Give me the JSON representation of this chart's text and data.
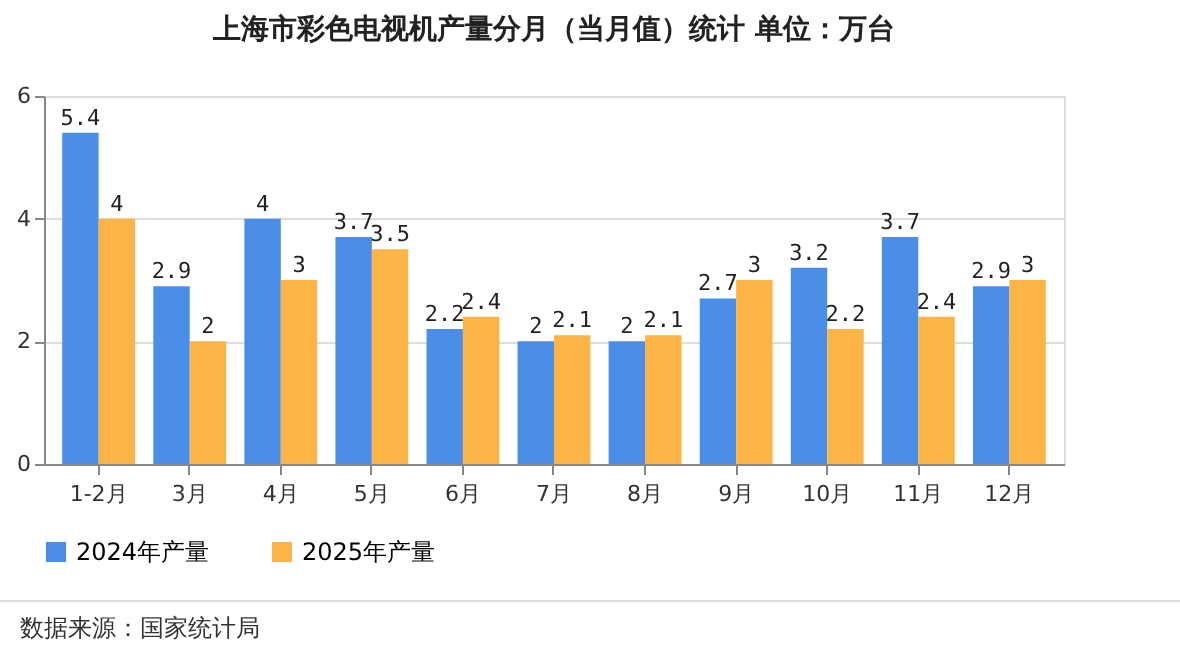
{
  "chart_data": {
    "type": "bar",
    "title": "上海市彩色电视机产量分月（当月值）统计  单位：万台",
    "categories": [
      "1-2月",
      "3月",
      "4月",
      "5月",
      "6月",
      "7月",
      "8月",
      "9月",
      "10月",
      "11月",
      "12月"
    ],
    "series": [
      {
        "name": "2024年产量",
        "color": "#4a8ee8",
        "values": [
          5.4,
          2.9,
          4,
          3.7,
          2.2,
          2,
          2,
          2.7,
          3.2,
          3.7,
          2.9
        ]
      },
      {
        "name": "2025年产量",
        "color": "#fbb445",
        "values": [
          4,
          2,
          3,
          3.5,
          2.4,
          2.1,
          2.1,
          3,
          2.2,
          2.4,
          3
        ]
      }
    ],
    "ylim": [
      0,
      6
    ],
    "yticks": [
      0,
      2,
      4,
      6
    ],
    "grid": "y",
    "legend": "bottom",
    "data_labels": true,
    "annotations": [
      "数据来源：国家统计局"
    ]
  }
}
